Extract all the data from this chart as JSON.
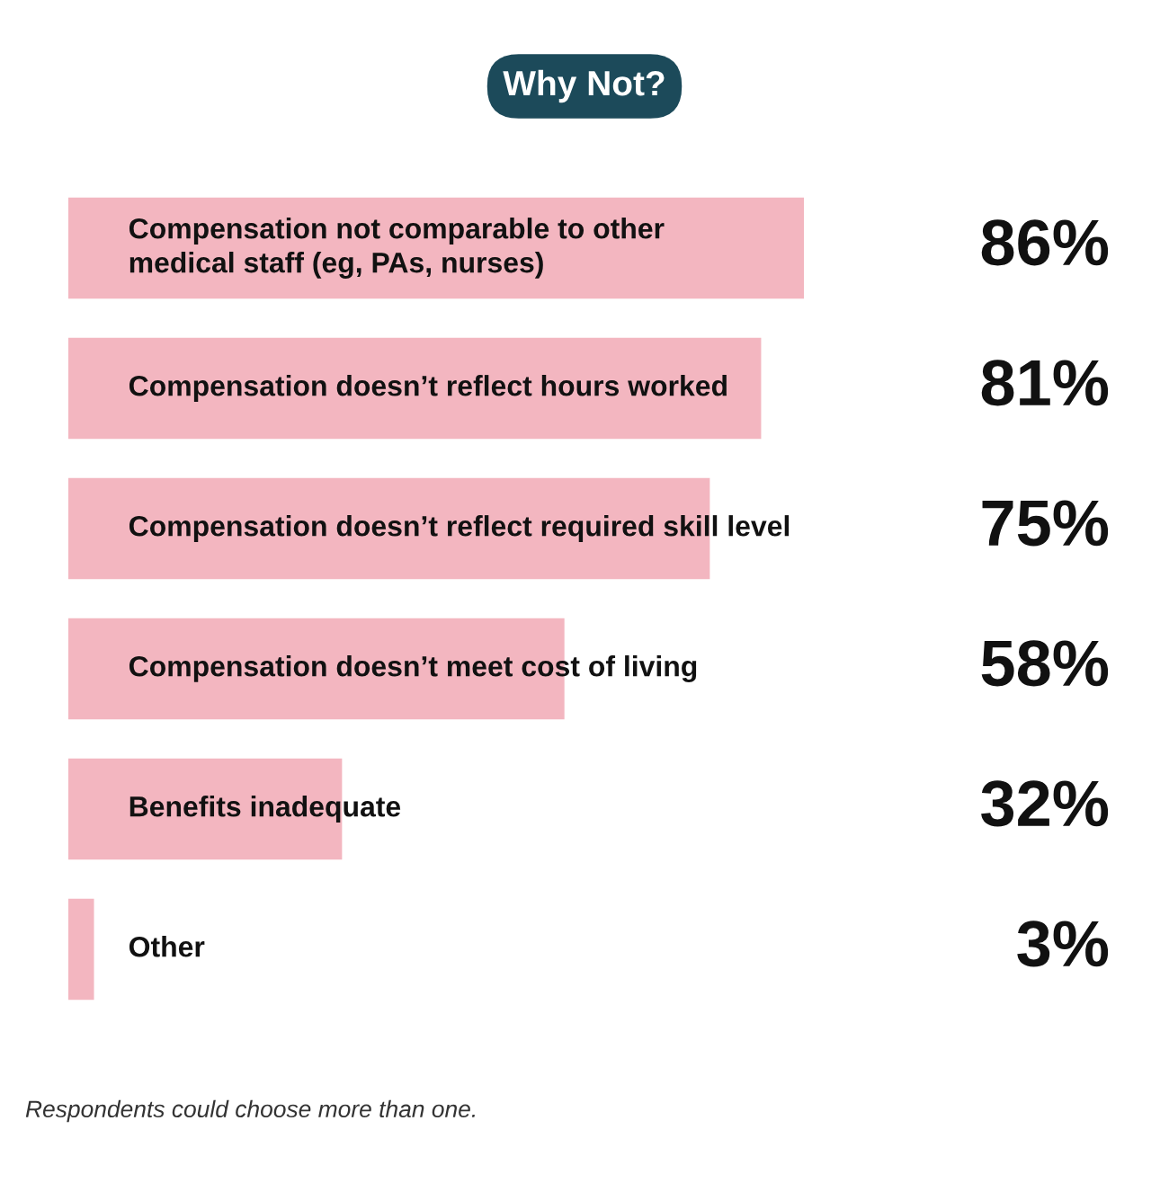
{
  "chart_data": {
    "type": "bar",
    "orientation": "horizontal",
    "title": "Why Not?",
    "categories": [
      "Compensation not comparable to other\nmedical staff (eg, PAs, nurses)",
      "Compensation doesn’t reflect hours worked",
      "Compensation doesn’t reflect required skill level",
      "Compensation doesn’t meet cost of living",
      "Benefits inadequate",
      "Other"
    ],
    "values": [
      86,
      81,
      75,
      58,
      32,
      3
    ],
    "value_labels": [
      "86%",
      "81%",
      "75%",
      "58%",
      "32%",
      "3%"
    ],
    "color": "#f3b6c0",
    "annotations": [
      "Respondents could choose more than one."
    ]
  }
}
